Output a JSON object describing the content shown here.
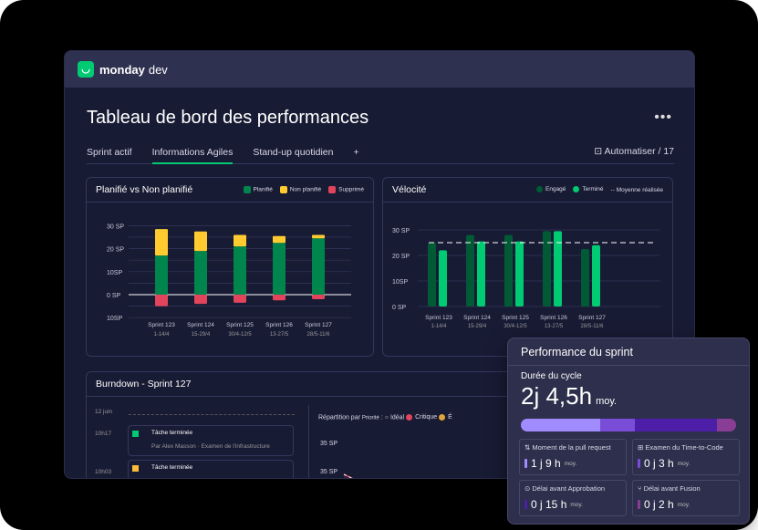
{
  "app": {
    "logo_text": "monday",
    "logo_suffix": "dev",
    "brand_color": "#00ca72"
  },
  "page": {
    "title": "Tableau de bord des performances",
    "more_icon": "more-horizontal-icon"
  },
  "tabs": [
    {
      "label": "Sprint actif"
    },
    {
      "label": "Informations Agiles",
      "active": true
    },
    {
      "label": "Stand-up quotidien"
    },
    {
      "label": "+"
    }
  ],
  "automate": {
    "label": "Automatiser / 17",
    "icon": "robot-icon"
  },
  "chart_data": [
    {
      "type": "bar",
      "title": "Planifié vs Non planifié",
      "stacked": true,
      "categories": [
        "Sprint 123",
        "Sprint 124",
        "Sprint 125",
        "Sprint 126",
        "Sprint 127"
      ],
      "category_dates": [
        "1-14/4",
        "15-29/4",
        "30/4-12/5",
        "13-27/5",
        "28/5-11/6"
      ],
      "series": [
        {
          "name": "Planifié",
          "color": "#00854d",
          "values": [
            17,
            19,
            21,
            22.5,
            24.5
          ]
        },
        {
          "name": "Non planifié",
          "color": "#ffcb2f",
          "values": [
            11.5,
            8.5,
            5,
            3,
            1.5
          ]
        },
        {
          "name": "Supprimé",
          "color": "#e2445c",
          "values": [
            -5,
            -4,
            -3.5,
            -2.5,
            -2
          ]
        }
      ],
      "yticks": [
        "30 SP",
        "20 SP",
        "10SP",
        "0 SP",
        "10SP"
      ],
      "ylim": [
        -10,
        30
      ],
      "grid": true,
      "legend": "top-right"
    },
    {
      "type": "bar",
      "title": "Vélocité",
      "categories": [
        "Sprint 123",
        "Sprint 124",
        "Sprint 125",
        "Sprint 126",
        "Sprint 127"
      ],
      "category_dates": [
        "1-14/4",
        "15-29/4",
        "30/4-12/5",
        "13-27/5",
        "28/5-11/6"
      ],
      "series": [
        {
          "name": "Engagé",
          "color": "#005a35",
          "values": [
            25,
            28,
            28,
            29.5,
            22.5
          ]
        },
        {
          "name": "Terminé",
          "color": "#00ca72",
          "values": [
            22,
            25.5,
            25.5,
            29.5,
            24
          ]
        }
      ],
      "average": {
        "name": "Moyenne réalisée",
        "value": 25
      },
      "yticks": [
        "30 SP",
        "20 SP",
        "10SP",
        "0 SP"
      ],
      "ylim": [
        0,
        30
      ],
      "grid": true,
      "legend": "top-right"
    }
  ],
  "burndown": {
    "title": "Burndown - Sprint 127",
    "date": "12 juin",
    "events": [
      {
        "time": "10h17",
        "title": "Tâche terminée",
        "by": "Par Alex Masson",
        "item": "Examen de l'infrastructure",
        "color": "#00ca72"
      },
      {
        "time": "10h03",
        "title": "Tâche terminée",
        "by": "",
        "item": "",
        "color": "#fdbc36"
      }
    ],
    "split_label": "Répartition par",
    "split_value": "Priorité",
    "sep": ":",
    "legend": [
      {
        "name": "Idéal"
      },
      {
        "name": "Critique",
        "color": "#e2445c"
      },
      {
        "name": "É",
        "color": "#e2a33a"
      }
    ],
    "yticks": [
      "35 SP",
      "35 SP"
    ]
  },
  "sprint_card": {
    "title": "Performance du sprint",
    "metric_label": "Durée du cycle",
    "metric_value": "2j 4,5h",
    "metric_unit": "moy.",
    "breakdown": [
      {
        "value": 37,
        "color": "#a18cff"
      },
      {
        "value": 16,
        "color": "#7a4dd8"
      },
      {
        "value": 38,
        "color": "#4d1ea8"
      },
      {
        "value": 9,
        "color": "#8a3d95"
      }
    ],
    "items": [
      {
        "label": "Moment de la pull request",
        "icon": "pull-request-icon",
        "value": "1 j 9 h",
        "unit": "moy.",
        "color": "#a18cff"
      },
      {
        "label": "Examen du Time-to-Code",
        "icon": "code-review-icon",
        "value": "0 j 3 h",
        "unit": "moy.",
        "color": "#7a4dd8"
      },
      {
        "label": "Délai avant Approbation",
        "icon": "search-check-icon",
        "value": "0 j 15 h",
        "unit": "moy.",
        "color": "#4d1ea8"
      },
      {
        "label": "Délai avant Fusion",
        "icon": "merge-icon",
        "value": "0 j 2 h",
        "unit": "moy.",
        "color": "#8a3d95"
      }
    ]
  }
}
